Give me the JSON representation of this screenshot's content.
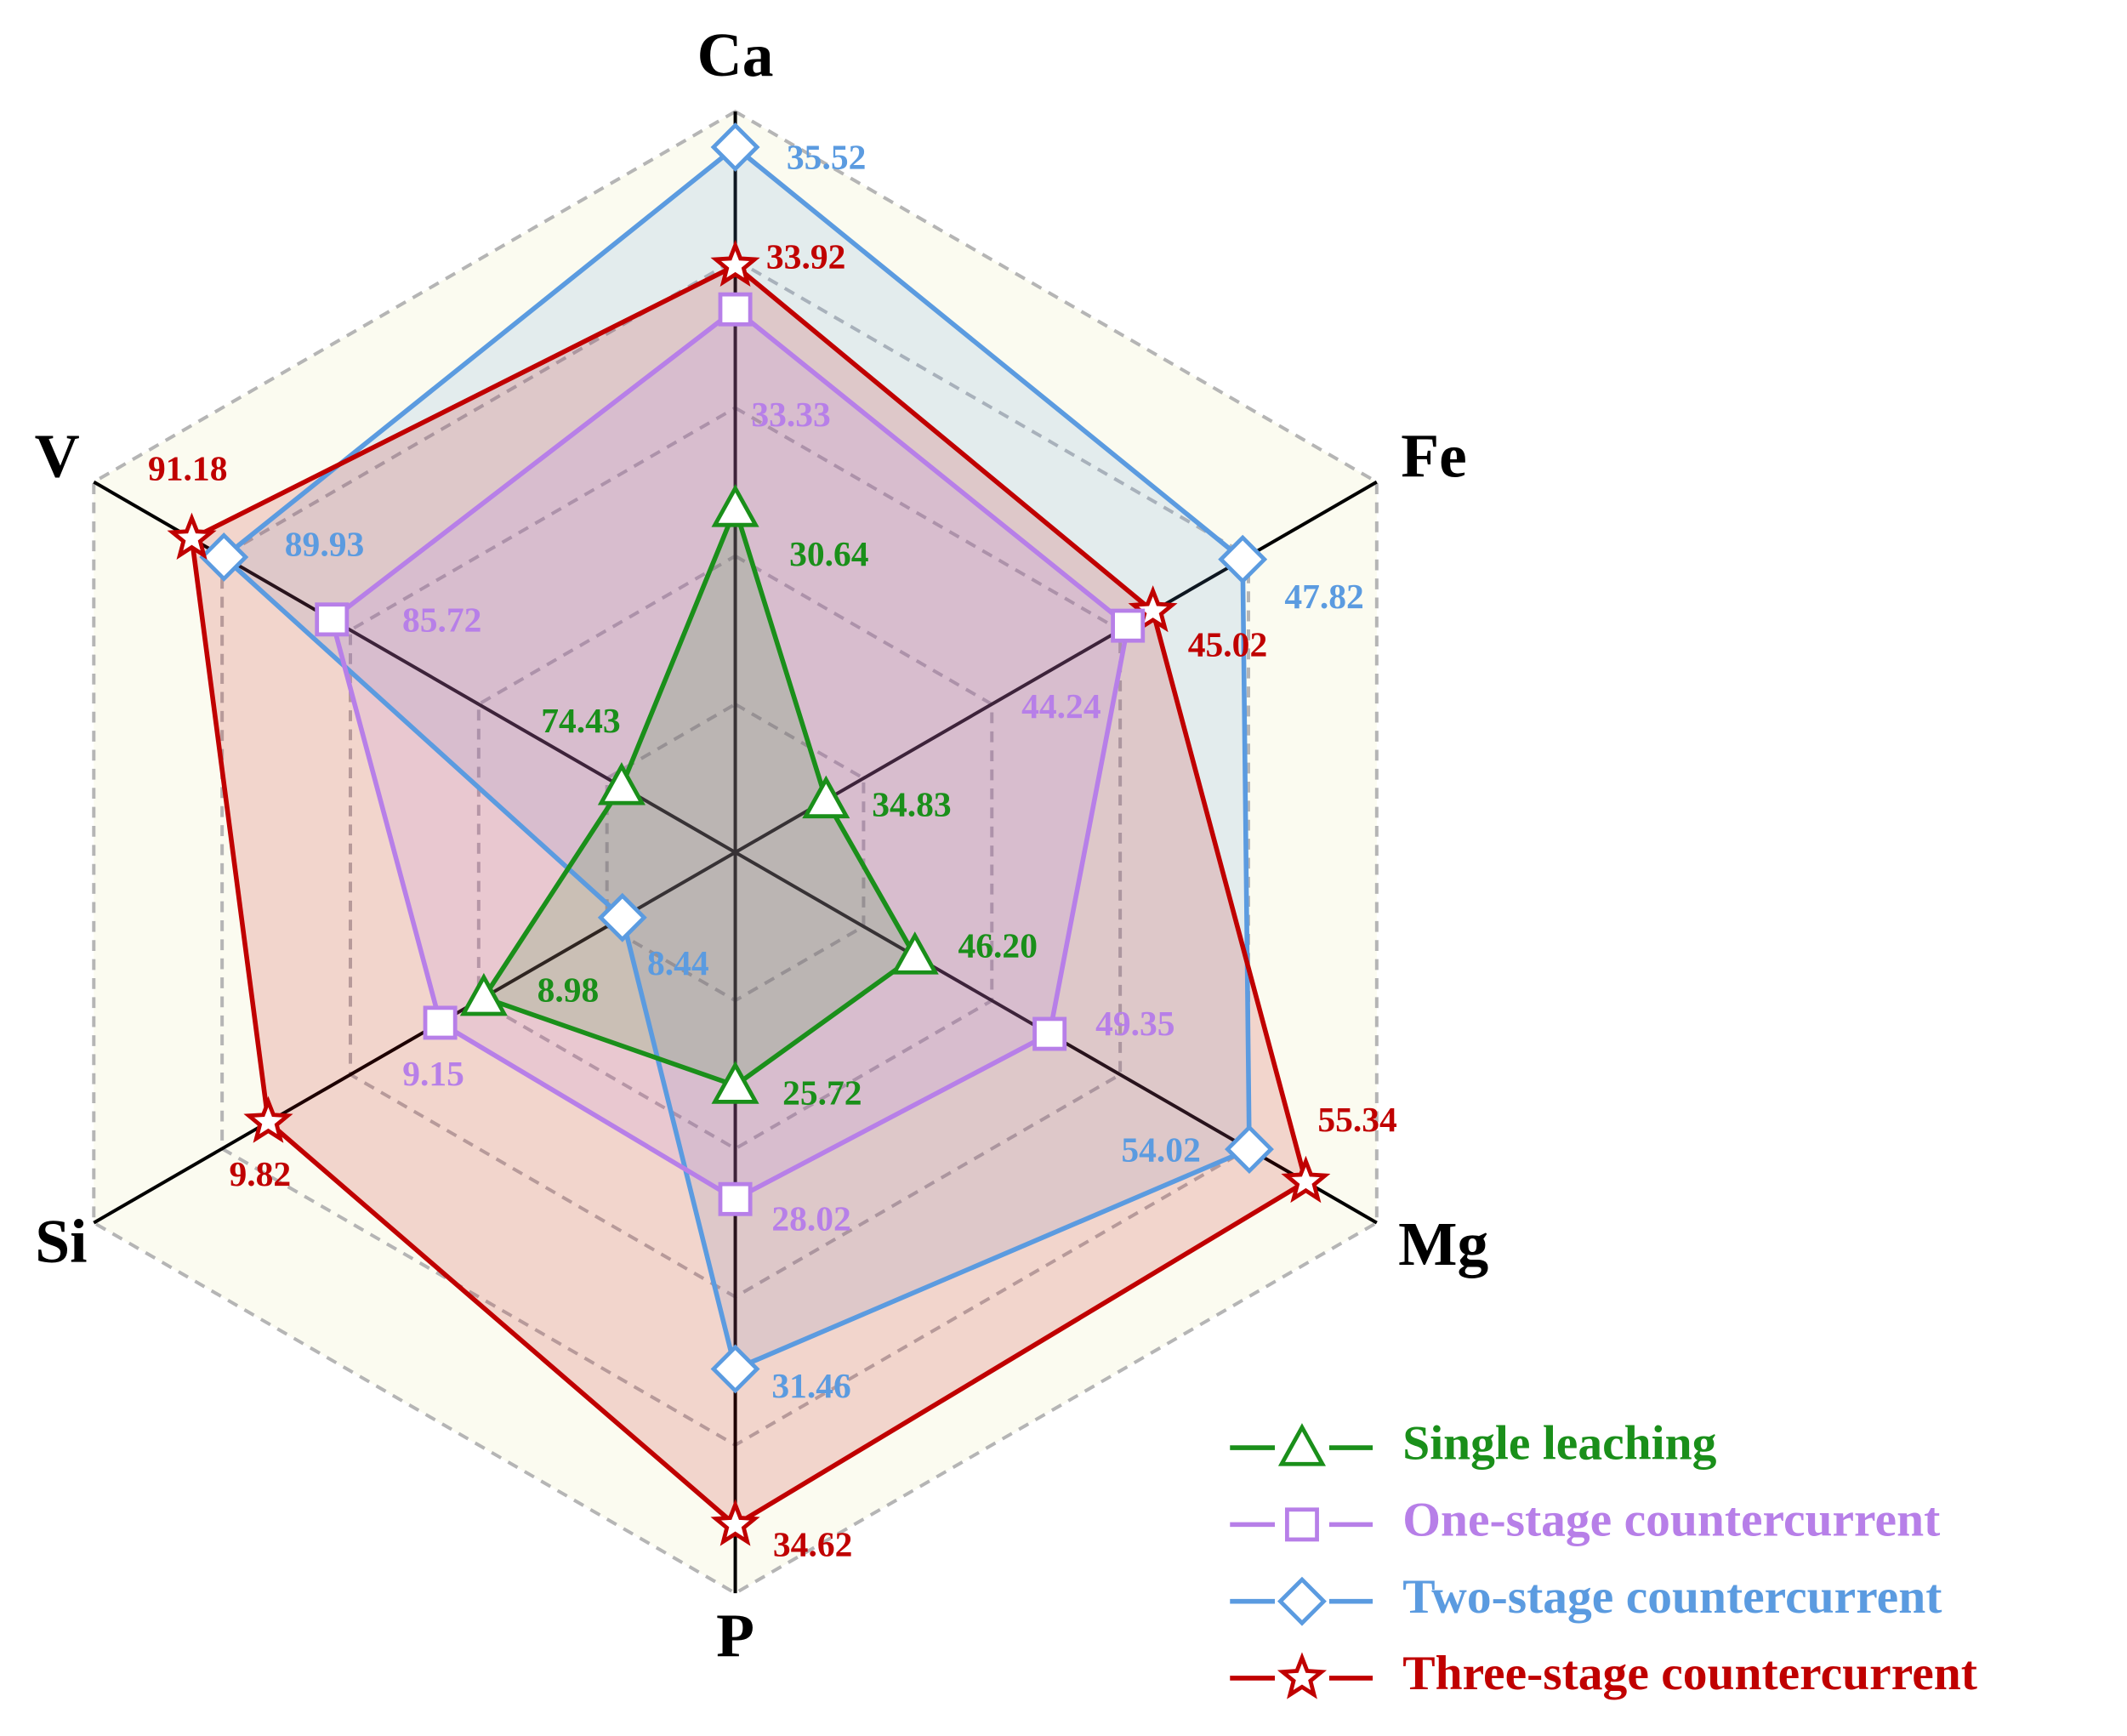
{
  "chart_data": {
    "type": "radar",
    "categories": [
      "Ca",
      "Fe",
      "Mg",
      "P",
      "Si",
      "V"
    ],
    "rlims": [
      [
        26,
        36
      ],
      [
        32,
        52
      ],
      [
        42,
        57
      ],
      [
        21,
        36
      ],
      [
        8,
        10.5
      ],
      [
        70,
        95
      ]
    ],
    "grid_levels": 5,
    "series": [
      {
        "name": "Single leaching",
        "color": "#1a8f1a",
        "marker": "triangle",
        "values": [
          30.64,
          34.83,
          46.2,
          25.72,
          8.98,
          74.43
        ],
        "value_labels": [
          "30.64",
          "34.83",
          "46.20",
          "25.72",
          "8.98",
          "74.43"
        ]
      },
      {
        "name": "One-stage countercurrent",
        "color": "#b77fe8",
        "marker": "square",
        "values": [
          33.33,
          44.24,
          49.35,
          28.02,
          9.15,
          85.72
        ],
        "value_labels": [
          "33.33",
          "44.24",
          "49.35",
          "28.02",
          "9.15",
          "85.72"
        ]
      },
      {
        "name": "Two-stage countercurrent",
        "color": "#5b9be0",
        "marker": "diamond",
        "values": [
          35.52,
          47.82,
          54.02,
          31.46,
          8.44,
          89.93
        ],
        "value_labels": [
          "35.52",
          "47.82",
          "54.02",
          "31.46",
          "8.44",
          "89.93"
        ]
      },
      {
        "name": "Three-stage countercurrent",
        "color": "#c00000",
        "marker": "star",
        "values": [
          33.92,
          45.02,
          55.34,
          34.62,
          9.82,
          91.18
        ],
        "value_labels": [
          "33.92",
          "45.02",
          "55.34",
          "34.62",
          "9.82",
          "91.18"
        ]
      }
    ]
  }
}
